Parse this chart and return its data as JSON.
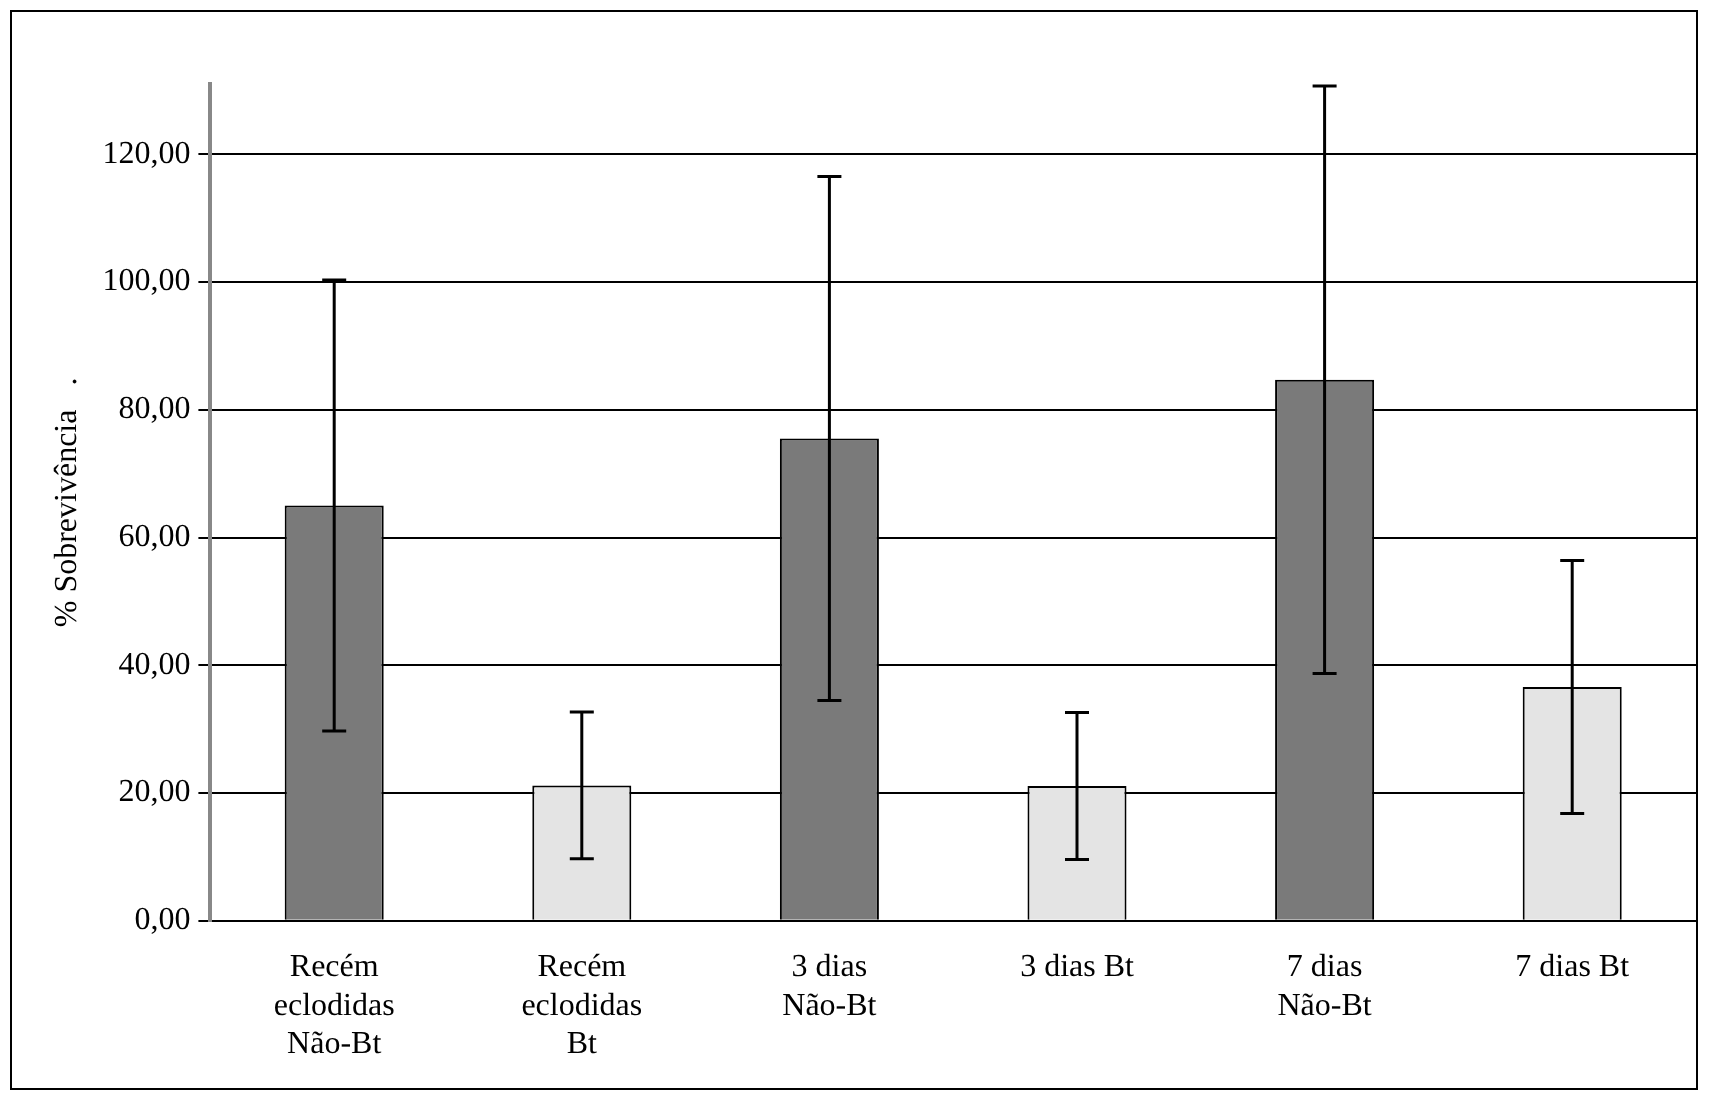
{
  "chart_data": {
    "type": "bar",
    "ylabel": "% Sobrevivência   .",
    "categories": [
      "Recém\neclodidas\nNão-Bt",
      "Recém\neclodidas\nBt",
      "3 dias\nNão-Bt",
      "3 dias Bt",
      "7 dias\nNão-Bt",
      "7 dias Bt"
    ],
    "values": [
      65,
      21.2,
      75.5,
      21.1,
      84.7,
      36.6
    ],
    "errors": [
      35.3,
      11.5,
      41,
      11.5,
      46,
      19.8
    ],
    "colors": [
      "#7a7a7a",
      "#e4e4e4",
      "#7a7a7a",
      "#e4e4e4",
      "#7a7a7a",
      "#e4e4e4"
    ],
    "ylim": [
      0,
      131
    ],
    "yticks": [
      {
        "value": 0,
        "label": "0,00"
      },
      {
        "value": 20,
        "label": "20,00"
      },
      {
        "value": 40,
        "label": "40,00"
      },
      {
        "value": 60,
        "label": "60,00"
      },
      {
        "value": 80,
        "label": "80,00"
      },
      {
        "value": 100,
        "label": "100,00"
      },
      {
        "value": 120,
        "label": "120,00"
      }
    ],
    "grid": "y",
    "legend": false
  }
}
